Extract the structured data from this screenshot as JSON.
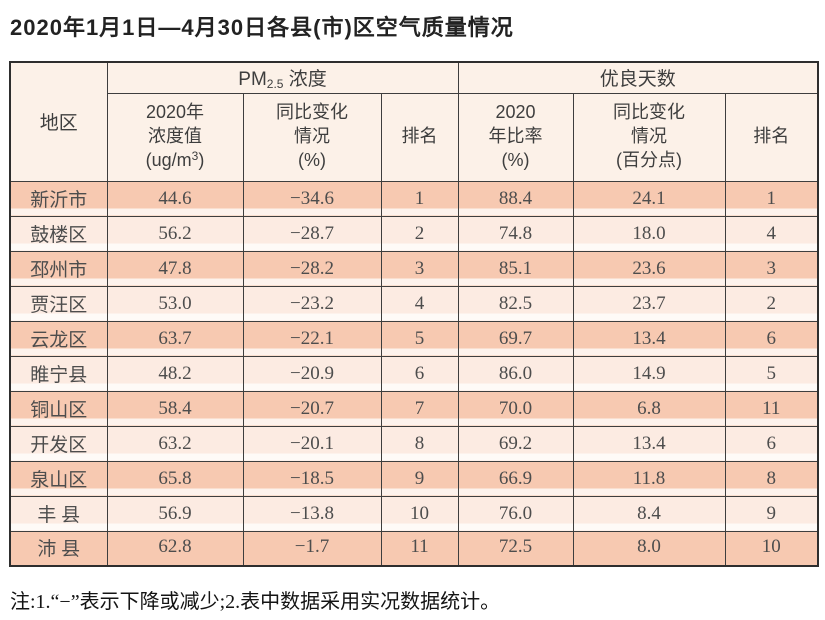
{
  "title": "2020年1月1日—4月30日各县(市)区空气质量情况",
  "note": "注:1.“−”表示下降或减少;2.表中数据采用实况数据统计。",
  "table": {
    "region_header": "地区",
    "group_pm25": {
      "prefix": "PM",
      "sub": "2.5",
      "suffix": " 浓度"
    },
    "group_good_days": "优良天数",
    "sub_headers": {
      "conc": {
        "line1": "2020年",
        "line2": "浓度值",
        "unit_prefix": "(ug/m",
        "unit_sup": "3",
        "unit_suffix": ")"
      },
      "conc_change": {
        "line1": "同比变化",
        "line2": "情况",
        "line3": "(%)"
      },
      "rank_pm25": "排名",
      "ratio": {
        "line1": "2020",
        "line2": "年比率",
        "line3": "(%)"
      },
      "ratio_change": {
        "line1": "同比变化",
        "line2": "情况",
        "line3": "(百分点)"
      },
      "rank_days": "排名"
    },
    "rows": [
      {
        "region": "新沂市",
        "pm25": "44.6",
        "pm25_change": "−34.6",
        "pm25_rank": "1",
        "ratio": "88.4",
        "ratio_change": "24.1",
        "ratio_rank": "1"
      },
      {
        "region": "鼓楼区",
        "pm25": "56.2",
        "pm25_change": "−28.7",
        "pm25_rank": "2",
        "ratio": "74.8",
        "ratio_change": "18.0",
        "ratio_rank": "4"
      },
      {
        "region": "邳州市",
        "pm25": "47.8",
        "pm25_change": "−28.2",
        "pm25_rank": "3",
        "ratio": "85.1",
        "ratio_change": "23.6",
        "ratio_rank": "3"
      },
      {
        "region": "贾汪区",
        "pm25": "53.0",
        "pm25_change": "−23.2",
        "pm25_rank": "4",
        "ratio": "82.5",
        "ratio_change": "23.7",
        "ratio_rank": "2"
      },
      {
        "region": "云龙区",
        "pm25": "63.7",
        "pm25_change": "−22.1",
        "pm25_rank": "5",
        "ratio": "69.7",
        "ratio_change": "13.4",
        "ratio_rank": "6"
      },
      {
        "region": "睢宁县",
        "pm25": "48.2",
        "pm25_change": "−20.9",
        "pm25_rank": "6",
        "ratio": "86.0",
        "ratio_change": "14.9",
        "ratio_rank": "5"
      },
      {
        "region": "铜山区",
        "pm25": "58.4",
        "pm25_change": "−20.7",
        "pm25_rank": "7",
        "ratio": "70.0",
        "ratio_change": "6.8",
        "ratio_rank": "11"
      },
      {
        "region": "开发区",
        "pm25": "63.2",
        "pm25_change": "−20.1",
        "pm25_rank": "8",
        "ratio": "69.2",
        "ratio_change": "13.4",
        "ratio_rank": "6"
      },
      {
        "region": "泉山区",
        "pm25": "65.8",
        "pm25_change": "−18.5",
        "pm25_rank": "9",
        "ratio": "66.9",
        "ratio_change": "11.8",
        "ratio_rank": "8"
      },
      {
        "region": "丰 县",
        "pm25": "56.9",
        "pm25_change": "−13.8",
        "pm25_rank": "10",
        "ratio": "76.0",
        "ratio_change": "8.4",
        "ratio_rank": "9"
      },
      {
        "region": "沛 县",
        "pm25": "62.8",
        "pm25_change": "−1.7",
        "pm25_rank": "11",
        "ratio": "72.5",
        "ratio_change": "8.0",
        "ratio_rank": "10"
      }
    ]
  },
  "colors": {
    "row_odd_band": "#f7c9b1",
    "row_even_band": "#fcebe2",
    "header_bg": "#fcf1e8",
    "grid_line": "#3e3e3e",
    "text": "#4d4d4d"
  }
}
